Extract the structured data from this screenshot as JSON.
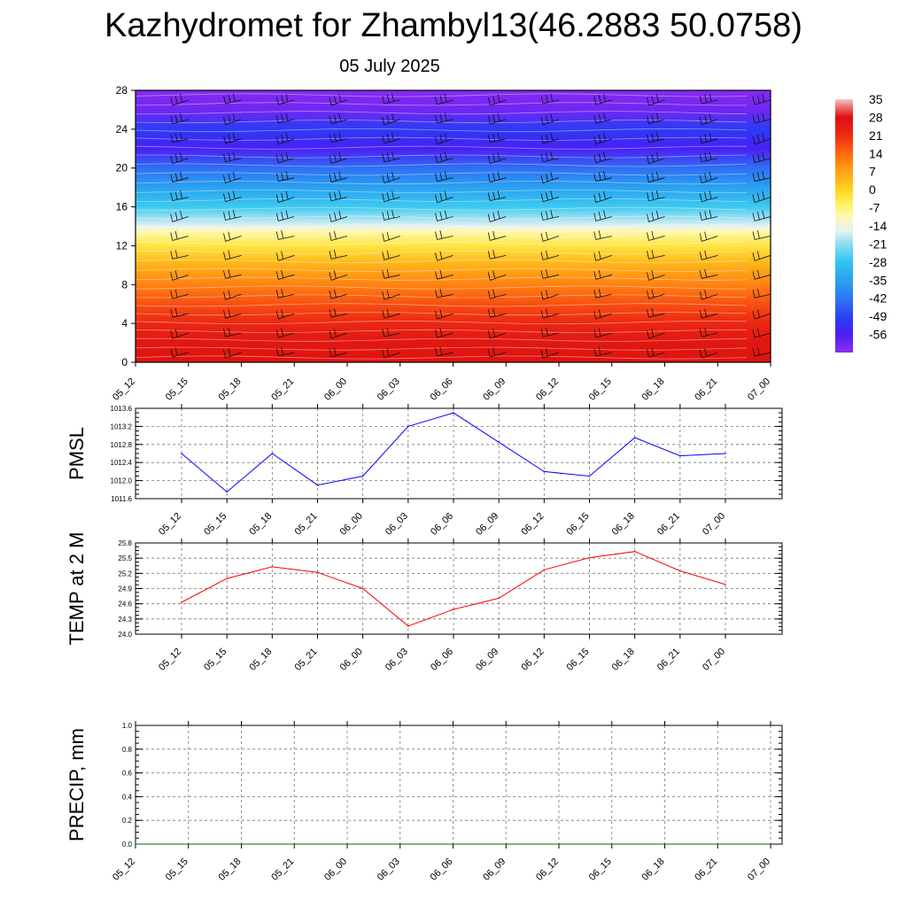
{
  "title": "Kazhydromet for Zhambyl13(46.2883 50.0758)",
  "subtitle": "05 July 2025",
  "time_labels": [
    "05_12",
    "05_15",
    "05_18",
    "05_21",
    "06_00",
    "06_03",
    "06_06",
    "06_09",
    "06_12",
    "06_15",
    "06_18",
    "06_21",
    "07_00"
  ],
  "colorbar": {
    "labels": [
      "35",
      "28",
      "21",
      "14",
      "7",
      "0",
      "-7",
      "-14",
      "-21",
      "-28",
      "-35",
      "-42",
      "-49",
      "-56"
    ],
    "min": -63,
    "max": 35
  },
  "chart_data": [
    {
      "type": "heatmap",
      "name": "upper-air-section",
      "ylim": [
        0,
        28
      ],
      "yticks": [
        "0",
        "4",
        "8",
        "12",
        "16",
        "20",
        "24",
        "28"
      ],
      "xticks": [
        "05_12",
        "05_15",
        "05_18",
        "05_21",
        "06_00",
        "06_03",
        "06_06",
        "06_09",
        "06_12",
        "06_15",
        "06_18",
        "06_21",
        "07_00"
      ],
      "temperature_profile": [
        {
          "level": 0,
          "value": 27
        },
        {
          "level": 2,
          "value": 26
        },
        {
          "level": 4,
          "value": 22
        },
        {
          "level": 6,
          "value": 17
        },
        {
          "level": 8,
          "value": 11
        },
        {
          "level": 10,
          "value": 5
        },
        {
          "level": 12,
          "value": -3
        },
        {
          "level": 13.5,
          "value": -10
        },
        {
          "level": 14,
          "value": -16
        },
        {
          "level": 16,
          "value": -27
        },
        {
          "level": 18,
          "value": -35
        },
        {
          "level": 20,
          "value": -43
        },
        {
          "level": 22,
          "value": -56
        },
        {
          "level": 24,
          "value": -50
        },
        {
          "level": 26,
          "value": -60
        },
        {
          "level": 28,
          "value": -62
        }
      ],
      "wind_barb_levels": [
        1,
        3,
        5,
        7,
        9,
        11,
        13,
        15,
        17,
        19,
        21,
        23,
        25,
        27
      ]
    },
    {
      "type": "line",
      "name": "pmsl",
      "ylabel": "PMSL",
      "color": "#0000ff",
      "ylim": [
        1011.6,
        1013.6
      ],
      "yticks": [
        "1011.6",
        "1012.0",
        "1012.4",
        "1012.8",
        "1013.2",
        "1013.6"
      ],
      "x": [
        "05_12",
        "05_15",
        "05_18",
        "05_21",
        "06_00",
        "06_03",
        "06_06",
        "06_09",
        "06_12",
        "06_15",
        "06_18",
        "06_21",
        "07_00"
      ],
      "values": [
        1012.6,
        1011.75,
        1012.6,
        1011.9,
        1012.1,
        1013.2,
        1013.5,
        1012.85,
        1012.2,
        1012.1,
        1012.95,
        1012.55,
        1012.6
      ]
    },
    {
      "type": "line",
      "name": "temp-2m",
      "ylabel": "TEMP at 2 M",
      "color": "#ff0000",
      "ylim": [
        24.0,
        25.8
      ],
      "yticks": [
        "24.0",
        "24.3",
        "24.6",
        "24.9",
        "25.2",
        "25.5",
        "25.8"
      ],
      "x": [
        "05_12",
        "05_15",
        "05_18",
        "05_21",
        "06_00",
        "06_03",
        "06_06",
        "06_09",
        "06_12",
        "06_15",
        "06_18",
        "06_21",
        "07_00"
      ],
      "values": [
        24.63,
        25.1,
        25.33,
        25.22,
        24.9,
        24.16,
        24.49,
        24.71,
        25.27,
        25.51,
        25.63,
        25.25,
        24.98
      ]
    },
    {
      "type": "line",
      "name": "precip",
      "ylabel": "PRECIP, mm",
      "color": "#006400",
      "ylim": [
        0.0,
        1.0
      ],
      "yticks": [
        "0.0",
        "0.2",
        "0.4",
        "0.6",
        "0.8",
        "1.0"
      ],
      "x": [
        "05_12",
        "05_15",
        "05_18",
        "05_21",
        "06_00",
        "06_03",
        "06_06",
        "06_09",
        "06_12",
        "06_15",
        "06_18",
        "06_21",
        "07_00"
      ],
      "values": [
        0,
        0,
        0,
        0,
        0,
        0,
        0,
        0,
        0,
        0,
        0,
        0,
        0
      ]
    }
  ]
}
